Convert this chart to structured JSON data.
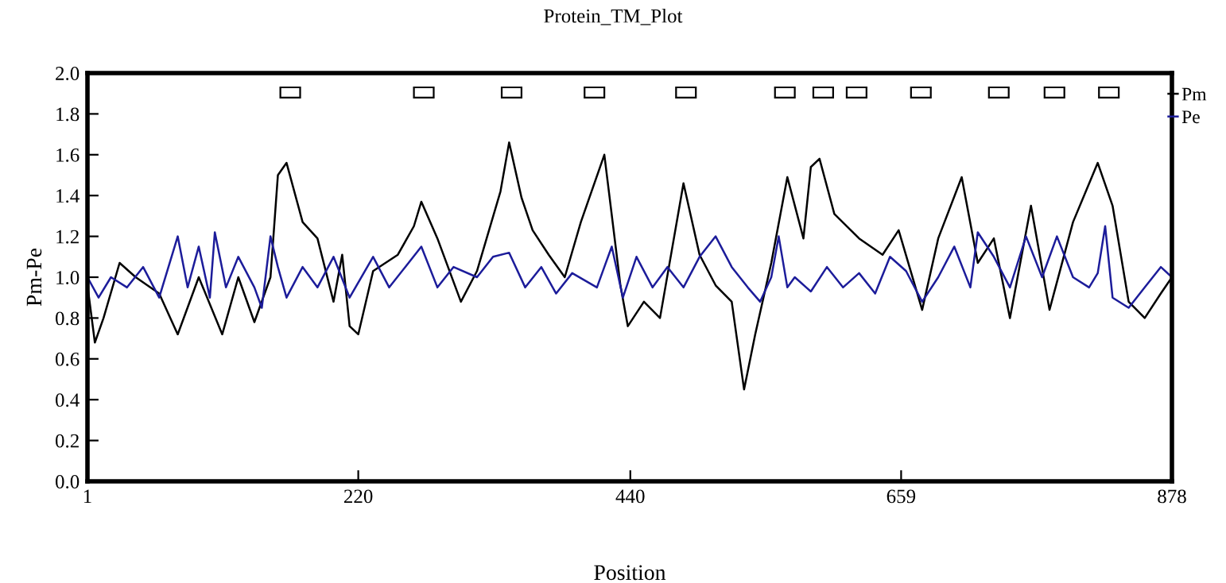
{
  "chart_data": {
    "type": "line",
    "title": "Protein_TM_Plot",
    "xlabel": "Position",
    "ylabel": "Pm-Pe",
    "xlim": [
      1,
      878
    ],
    "xticks": [
      1,
      220,
      440,
      659,
      878
    ],
    "ylim": [
      0,
      2
    ],
    "yticks": [
      {
        "value": 0,
        "label": "0.0"
      },
      {
        "value": 0.2,
        "label": "0.2"
      },
      {
        "value": 0.4,
        "label": "0.4"
      },
      {
        "value": 0.6,
        "label": "0.6"
      },
      {
        "value": 0.8,
        "label": "0.8"
      },
      {
        "value": 1.0,
        "label": "1.0"
      },
      {
        "value": 1.2,
        "label": "1.2"
      },
      {
        "value": 1.4,
        "label": "1.4"
      },
      {
        "value": 1.6,
        "label": "1.6"
      },
      {
        "value": 1.8,
        "label": "1.8"
      },
      {
        "value": 2.0,
        "label": "2.0"
      }
    ],
    "grid": false,
    "legend": "right",
    "line_style": "solid",
    "series": [
      {
        "type": "bar",
        "color": "#ffffff",
        "x": [
          165,
          273,
          344,
          411,
          485,
          565,
          596,
          623,
          675,
          738,
          783,
          827
        ],
        "base": [
          1.88,
          1.88,
          1.88,
          1.88,
          1.88,
          1.88,
          1.88,
          1.88,
          1.88,
          1.88,
          1.88,
          1.88
        ],
        "values": [
          0.05,
          0.05,
          0.05,
          0.05,
          0.05,
          0.05,
          0.05,
          0.05,
          0.05,
          0.05,
          0.05,
          0.05
        ]
      },
      {
        "name": "Pm",
        "color": "#000000",
        "x": [
          1,
          7,
          14,
          27,
          40,
          59,
          74,
          91,
          110,
          123,
          136,
          149,
          155,
          162,
          175,
          187,
          200,
          207,
          213,
          220,
          232,
          252,
          265,
          271,
          284,
          303,
          316,
          335,
          342,
          352,
          361,
          374,
          387,
          400,
          419,
          432,
          438,
          451,
          464,
          483,
          496,
          509,
          522,
          532,
          541,
          554,
          567,
          580,
          586,
          593,
          605,
          625,
          644,
          657,
          676,
          689,
          708,
          721,
          734,
          747,
          764,
          779,
          798,
          818,
          830,
          843,
          856,
          869,
          878
        ],
        "values": [
          0.96,
          0.68,
          0.8,
          1.07,
          1.0,
          0.92,
          0.72,
          1.0,
          0.72,
          1.0,
          0.78,
          1.0,
          1.5,
          1.56,
          1.27,
          1.19,
          0.88,
          1.11,
          0.76,
          0.72,
          1.03,
          1.11,
          1.25,
          1.37,
          1.19,
          0.88,
          1.03,
          1.42,
          1.66,
          1.39,
          1.23,
          1.11,
          1.0,
          1.27,
          1.6,
          0.96,
          0.76,
          0.88,
          0.8,
          1.46,
          1.11,
          0.96,
          0.88,
          0.45,
          0.72,
          1.07,
          1.49,
          1.19,
          1.54,
          1.58,
          1.31,
          1.19,
          1.11,
          1.23,
          0.84,
          1.19,
          1.49,
          1.07,
          1.19,
          0.8,
          1.35,
          0.84,
          1.27,
          1.56,
          1.35,
          0.88,
          0.8,
          0.92,
          1.0
        ]
      },
      {
        "name": "Pe",
        "color": "#1c1c9a",
        "x": [
          1,
          10,
          20,
          33,
          46,
          59,
          74,
          82,
          91,
          100,
          104,
          113,
          123,
          136,
          142,
          149,
          155,
          162,
          175,
          187,
          200,
          213,
          232,
          245,
          258,
          271,
          284,
          297,
          316,
          329,
          342,
          355,
          368,
          380,
          393,
          413,
          425,
          434,
          445,
          458,
          470,
          483,
          496,
          509,
          522,
          535,
          545,
          554,
          560,
          567,
          573,
          586,
          599,
          612,
          625,
          638,
          650,
          663,
          676,
          689,
          702,
          715,
          721,
          734,
          747,
          760,
          773,
          785,
          798,
          811,
          818,
          824,
          830,
          843,
          856,
          869,
          878
        ],
        "values": [
          1.0,
          0.9,
          1.0,
          0.95,
          1.05,
          0.9,
          1.2,
          0.95,
          1.15,
          0.9,
          1.22,
          0.95,
          1.1,
          0.95,
          0.85,
          1.2,
          1.05,
          0.9,
          1.05,
          0.95,
          1.1,
          0.9,
          1.1,
          0.95,
          1.05,
          1.15,
          0.95,
          1.05,
          1.0,
          1.1,
          1.12,
          0.95,
          1.05,
          0.92,
          1.02,
          0.95,
          1.15,
          0.9,
          1.1,
          0.95,
          1.05,
          0.95,
          1.1,
          1.2,
          1.05,
          0.95,
          0.88,
          1.0,
          1.2,
          0.95,
          1.0,
          0.93,
          1.05,
          0.95,
          1.02,
          0.92,
          1.1,
          1.03,
          0.88,
          1.0,
          1.15,
          0.95,
          1.22,
          1.1,
          0.95,
          1.2,
          1.0,
          1.2,
          1.0,
          0.95,
          1.02,
          1.25,
          0.9,
          0.85,
          0.95,
          1.05,
          1.0
        ]
      }
    ]
  }
}
